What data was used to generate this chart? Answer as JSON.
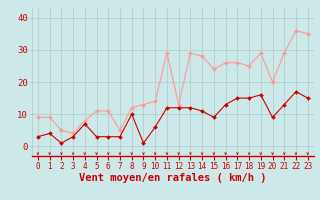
{
  "x": [
    0,
    1,
    2,
    3,
    4,
    5,
    6,
    7,
    8,
    9,
    10,
    11,
    12,
    13,
    14,
    15,
    16,
    17,
    18,
    19,
    20,
    21,
    22,
    23
  ],
  "wind_avg": [
    3,
    4,
    1,
    3,
    7,
    3,
    3,
    3,
    10,
    1,
    6,
    12,
    12,
    12,
    11,
    9,
    13,
    15,
    15,
    16,
    9,
    13,
    17,
    15
  ],
  "wind_gust": [
    9,
    9,
    5,
    4,
    8,
    11,
    11,
    5,
    12,
    13,
    14,
    29,
    13,
    29,
    28,
    24,
    26,
    26,
    25,
    29,
    20,
    29,
    36,
    35
  ],
  "bg_color": "#cce8e8",
  "grid_color": "#aacccc",
  "avg_color": "#cc0000",
  "gust_color": "#ff9999",
  "xlabel": "Vent moyen/en rafales ( km/h )",
  "xlabel_color": "#cc0000",
  "xlabel_fontsize": 7.5,
  "ytick_labels": [
    "0",
    "10",
    "20",
    "30",
    "40"
  ],
  "ytick_vals": [
    0,
    10,
    20,
    30,
    40
  ],
  "ylim": [
    -3,
    43
  ],
  "xlim": [
    -0.5,
    23.5
  ],
  "tick_color": "#cc0000",
  "tick_fontsize": 6.5,
  "xtick_fontsize": 5.5
}
